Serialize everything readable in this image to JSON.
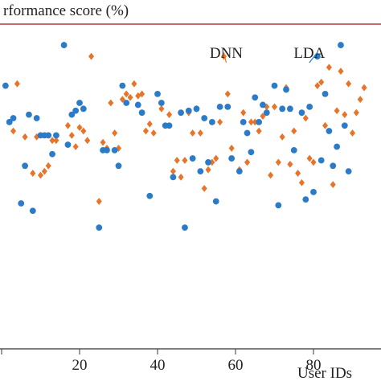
{
  "chart_data": {
    "type": "scatter",
    "ylabel": "rformance score (%)",
    "xlabel": "User IDs",
    "xticks": [
      20,
      40,
      60,
      80
    ],
    "x_visible_range": [
      0,
      94
    ],
    "y_visible_range": [
      34,
      100
    ],
    "grid": false,
    "colors": {
      "DNN": "#e8742a",
      "LDA": "#2b7bc8",
      "axis": "#555555",
      "top_rule": "#b23a3a"
    },
    "annotations": [
      {
        "text": "DNN",
        "series": "DNN",
        "x": 57,
        "y": 88.2
      },
      {
        "text": "LDA",
        "series": "LDA",
        "x": 81,
        "y": 88.2
      }
    ],
    "series": [
      {
        "name": "DNN",
        "points": [
          [
            1,
            80.7
          ],
          [
            3,
            69.1
          ],
          [
            4,
            81.2
          ],
          [
            6,
            67.6
          ],
          [
            8,
            58.3
          ],
          [
            9,
            67.6
          ],
          [
            10,
            57.8
          ],
          [
            11,
            58.8
          ],
          [
            12,
            60.2
          ],
          [
            13,
            66.7
          ],
          [
            14,
            66.7
          ],
          [
            17,
            70.5
          ],
          [
            18,
            68.0
          ],
          [
            19,
            65.1
          ],
          [
            20,
            70.0
          ],
          [
            21,
            69.1
          ],
          [
            22,
            66.7
          ],
          [
            23,
            88.2
          ],
          [
            25,
            51.1
          ],
          [
            26,
            66.2
          ],
          [
            27,
            64.7
          ],
          [
            28,
            76.3
          ],
          [
            29,
            68.6
          ],
          [
            30,
            64.7
          ],
          [
            31,
            77.2
          ],
          [
            32,
            78.6
          ],
          [
            33,
            77.7
          ],
          [
            34,
            81.2
          ],
          [
            35,
            78.1
          ],
          [
            36,
            78.6
          ],
          [
            37,
            69.1
          ],
          [
            38,
            70.9
          ],
          [
            39,
            68.6
          ],
          [
            41,
            74.8
          ],
          [
            43,
            73.3
          ],
          [
            44,
            58.8
          ],
          [
            45,
            61.6
          ],
          [
            46,
            57.3
          ],
          [
            47,
            61.6
          ],
          [
            48,
            73.8
          ],
          [
            49,
            68.6
          ],
          [
            50,
            74.8
          ],
          [
            51,
            68.6
          ],
          [
            52,
            54.4
          ],
          [
            53,
            59.2
          ],
          [
            54,
            61.1
          ],
          [
            55,
            62.1
          ],
          [
            56,
            71.4
          ],
          [
            57,
            88.2
          ],
          [
            58,
            78.6
          ],
          [
            59,
            64.7
          ],
          [
            61,
            59.2
          ],
          [
            62,
            73.8
          ],
          [
            63,
            61.1
          ],
          [
            64,
            71.4
          ],
          [
            65,
            71.4
          ],
          [
            66,
            69.1
          ],
          [
            67,
            72.9
          ],
          [
            68,
            75.3
          ],
          [
            69,
            57.8
          ],
          [
            70,
            75.3
          ],
          [
            71,
            61.1
          ],
          [
            72,
            67.6
          ],
          [
            73,
            80.2
          ],
          [
            74,
            60.6
          ],
          [
            75,
            69.1
          ],
          [
            76,
            58.3
          ],
          [
            77,
            55.9
          ],
          [
            78,
            72.4
          ],
          [
            79,
            62.1
          ],
          [
            80,
            61.1
          ],
          [
            81,
            80.7
          ],
          [
            82,
            81.6
          ],
          [
            83,
            70.5
          ],
          [
            84,
            85.4
          ],
          [
            85,
            55.4
          ],
          [
            86,
            74.3
          ],
          [
            87,
            84.4
          ],
          [
            88,
            73.3
          ],
          [
            89,
            81.2
          ],
          [
            90,
            68.6
          ],
          [
            91,
            73.8
          ],
          [
            92,
            77.2
          ],
          [
            93,
            80.2
          ]
        ]
      },
      {
        "name": "LDA",
        "points": [
          [
            1,
            80.7
          ],
          [
            2,
            71.4
          ],
          [
            3,
            72.4
          ],
          [
            5,
            50.6
          ],
          [
            6,
            60.2
          ],
          [
            7,
            73.3
          ],
          [
            8,
            48.7
          ],
          [
            9,
            72.4
          ],
          [
            10,
            68.0
          ],
          [
            11,
            68.0
          ],
          [
            12,
            68.0
          ],
          [
            13,
            63.2
          ],
          [
            14,
            68.0
          ],
          [
            16,
            91.1
          ],
          [
            17,
            65.6
          ],
          [
            18,
            73.3
          ],
          [
            19,
            74.3
          ],
          [
            20,
            76.3
          ],
          [
            21,
            74.8
          ],
          [
            25,
            44.4
          ],
          [
            26,
            64.2
          ],
          [
            27,
            64.2
          ],
          [
            29,
            64.2
          ],
          [
            30,
            60.2
          ],
          [
            31,
            80.7
          ],
          [
            32,
            76.3
          ],
          [
            35,
            75.8
          ],
          [
            36,
            73.8
          ],
          [
            38,
            52.5
          ],
          [
            40,
            78.6
          ],
          [
            41,
            76.3
          ],
          [
            42,
            70.5
          ],
          [
            43,
            70.5
          ],
          [
            44,
            57.3
          ],
          [
            46,
            73.8
          ],
          [
            47,
            44.4
          ],
          [
            48,
            74.3
          ],
          [
            49,
            62.1
          ],
          [
            50,
            74.8
          ],
          [
            51,
            58.8
          ],
          [
            52,
            72.4
          ],
          [
            53,
            61.1
          ],
          [
            54,
            71.4
          ],
          [
            55,
            51.1
          ],
          [
            56,
            75.3
          ],
          [
            58,
            75.3
          ],
          [
            59,
            62.1
          ],
          [
            61,
            58.8
          ],
          [
            62,
            71.4
          ],
          [
            63,
            68.6
          ],
          [
            64,
            63.7
          ],
          [
            65,
            77.7
          ],
          [
            66,
            71.4
          ],
          [
            67,
            75.8
          ],
          [
            68,
            73.8
          ],
          [
            70,
            80.7
          ],
          [
            71,
            50.1
          ],
          [
            72,
            74.8
          ],
          [
            73,
            79.7
          ],
          [
            74,
            74.8
          ],
          [
            75,
            64.2
          ],
          [
            77,
            73.8
          ],
          [
            78,
            51.6
          ],
          [
            79,
            75.3
          ],
          [
            80,
            53.5
          ],
          [
            81,
            88.2
          ],
          [
            82,
            61.6
          ],
          [
            83,
            78.6
          ],
          [
            84,
            69.1
          ],
          [
            85,
            60.2
          ],
          [
            86,
            65.1
          ],
          [
            87,
            91.1
          ],
          [
            88,
            70.5
          ],
          [
            89,
            58.8
          ]
        ]
      }
    ]
  }
}
